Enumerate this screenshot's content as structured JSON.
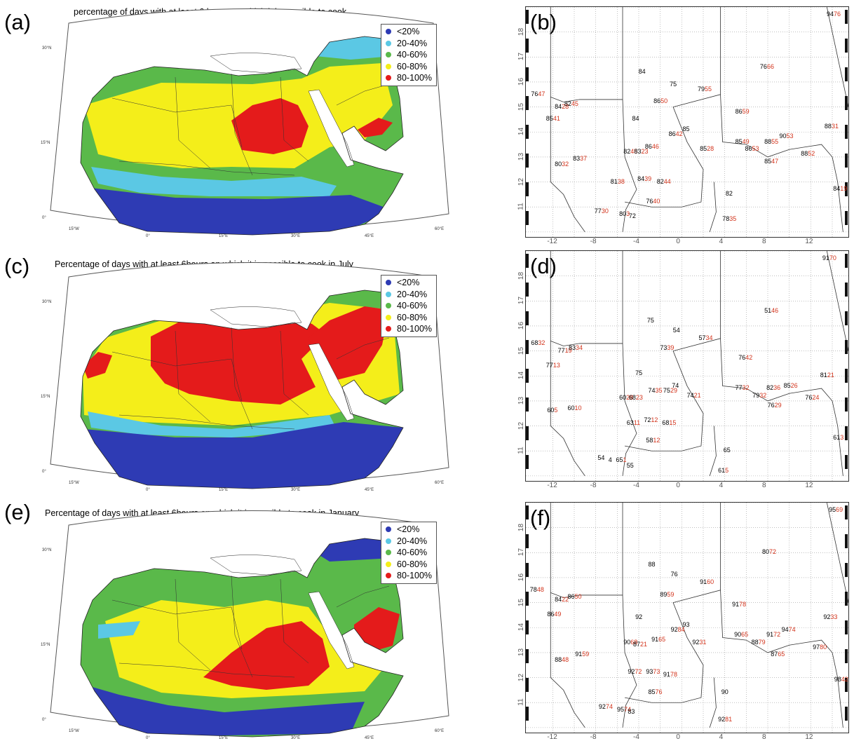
{
  "colors": {
    "blue": "#2e3bb4",
    "cyan": "#5bc8e4",
    "green": "#5ab94a",
    "yellow": "#f4ee1a",
    "red": "#e41b1b",
    "station_black": "#000000",
    "station_red": "#d2321a"
  },
  "legend": [
    "<20%",
    "20-40%",
    "40-60%",
    "60-80%",
    "80-100%"
  ],
  "map_axis": {
    "lon_labels": [
      "15°W",
      "0°",
      "15°E",
      "30°E",
      "45°E",
      "60°E"
    ],
    "lat_labels": [
      "30°N",
      "15°N",
      "0°"
    ]
  },
  "grid_axis": {
    "lon_ticks": [
      "-12",
      "-8",
      "-4",
      "0",
      "4",
      "8",
      "12"
    ],
    "lat_ticks": [
      "18",
      "17",
      "16",
      "15",
      "14",
      "13",
      "12",
      "11"
    ]
  },
  "panels": {
    "a": {
      "letter": "(a)",
      "title": "percentage of days with at least 6 hours on which it is possible to cook"
    },
    "c": {
      "letter": "(c)",
      "title": "Percentage of days with at least 6hours on which it is possible to cook in July"
    },
    "e": {
      "letter": "(e)",
      "title": "Percentage of days with at least 6hours on which it is possible to cook in January"
    },
    "b": {
      "letter": "(b)"
    },
    "d": {
      "letter": "(d)"
    },
    "f": {
      "letter": "(f)"
    }
  },
  "stations": {
    "b": [
      {
        "lon": 14.0,
        "lat": 18.7,
        "a": "94",
        "b": "76"
      },
      {
        "lon": 7.8,
        "lat": 16.6,
        "a": "76",
        "b": "66"
      },
      {
        "lon": -3.5,
        "lat": 16.4,
        "a": "84",
        "b": ""
      },
      {
        "lon": -0.6,
        "lat": 15.9,
        "a": "75",
        "b": ""
      },
      {
        "lon": 2.0,
        "lat": 15.7,
        "a": "79",
        "b": "55"
      },
      {
        "lon": -13.5,
        "lat": 15.5,
        "a": "76",
        "b": "47"
      },
      {
        "lon": -11.3,
        "lat": 15.0,
        "a": "84",
        "b": "28"
      },
      {
        "lon": -10.4,
        "lat": 15.1,
        "a": "82",
        "b": "45"
      },
      {
        "lon": -2.1,
        "lat": 15.2,
        "a": "86",
        "b": "50"
      },
      {
        "lon": 5.5,
        "lat": 14.8,
        "a": "86",
        "b": "59"
      },
      {
        "lon": -12.1,
        "lat": 14.5,
        "a": "85",
        "b": "41"
      },
      {
        "lon": -4.1,
        "lat": 14.5,
        "a": "84",
        "b": ""
      },
      {
        "lon": 13.8,
        "lat": 14.2,
        "a": "88",
        "b": "31"
      },
      {
        "lon": 0.6,
        "lat": 14.1,
        "a": "85",
        "b": ""
      },
      {
        "lon": -0.7,
        "lat": 13.9,
        "a": "86",
        "b": "42"
      },
      {
        "lon": 9.6,
        "lat": 13.8,
        "a": "90",
        "b": "53"
      },
      {
        "lon": 5.5,
        "lat": 13.6,
        "a": "85",
        "b": "49"
      },
      {
        "lon": 8.2,
        "lat": 13.6,
        "a": "88",
        "b": "55"
      },
      {
        "lon": -2.9,
        "lat": 13.4,
        "a": "86",
        "b": "46"
      },
      {
        "lon": -4.9,
        "lat": 13.2,
        "a": "82",
        "b": "45"
      },
      {
        "lon": -3.9,
        "lat": 13.2,
        "a": "83",
        "b": "23"
      },
      {
        "lon": 2.2,
        "lat": 13.3,
        "a": "85",
        "b": "28"
      },
      {
        "lon": 6.4,
        "lat": 13.3,
        "a": "86",
        "b": "53"
      },
      {
        "lon": 11.6,
        "lat": 13.1,
        "a": "88",
        "b": "52"
      },
      {
        "lon": -9.6,
        "lat": 12.9,
        "a": "83",
        "b": "37"
      },
      {
        "lon": -11.3,
        "lat": 12.7,
        "a": "80",
        "b": "32"
      },
      {
        "lon": 8.2,
        "lat": 12.8,
        "a": "85",
        "b": "47"
      },
      {
        "lon": -6.1,
        "lat": 12.0,
        "a": "81",
        "b": "38"
      },
      {
        "lon": -3.6,
        "lat": 12.1,
        "a": "84",
        "b": "39"
      },
      {
        "lon": -1.8,
        "lat": 12.0,
        "a": "82",
        "b": "44"
      },
      {
        "lon": 14.6,
        "lat": 11.7,
        "a": "84",
        "b": "19"
      },
      {
        "lon": 4.6,
        "lat": 11.5,
        "a": "82",
        "b": ""
      },
      {
        "lon": -2.8,
        "lat": 11.2,
        "a": "76",
        "b": "40"
      },
      {
        "lon": -7.6,
        "lat": 10.8,
        "a": "77",
        "b": "30"
      },
      {
        "lon": -5.3,
        "lat": 10.7,
        "a": "80",
        "b": "3"
      },
      {
        "lon": -4.4,
        "lat": 10.6,
        "a": "72",
        "b": ""
      },
      {
        "lon": 4.3,
        "lat": 10.5,
        "a": "78",
        "b": "35"
      }
    ],
    "d": [
      {
        "lon": 13.6,
        "lat": 18.7,
        "a": "91",
        "b": "70"
      },
      {
        "lon": 8.2,
        "lat": 16.6,
        "a": "51",
        "b": "46"
      },
      {
        "lon": -2.7,
        "lat": 16.2,
        "a": "75",
        "b": ""
      },
      {
        "lon": -0.3,
        "lat": 15.8,
        "a": "54",
        "b": ""
      },
      {
        "lon": 2.1,
        "lat": 15.5,
        "a": "57",
        "b": "34"
      },
      {
        "lon": -13.5,
        "lat": 15.3,
        "a": "68",
        "b": "32"
      },
      {
        "lon": -11.0,
        "lat": 15.0,
        "a": "77",
        "b": "19"
      },
      {
        "lon": -10.0,
        "lat": 15.1,
        "a": "83",
        "b": "34"
      },
      {
        "lon": -1.5,
        "lat": 15.1,
        "a": "73",
        "b": "39"
      },
      {
        "lon": 5.8,
        "lat": 14.7,
        "a": "76",
        "b": "42"
      },
      {
        "lon": -12.1,
        "lat": 14.4,
        "a": "77",
        "b": "13"
      },
      {
        "lon": -3.8,
        "lat": 14.1,
        "a": "75",
        "b": ""
      },
      {
        "lon": 13.4,
        "lat": 14.0,
        "a": "81",
        "b": "21"
      },
      {
        "lon": -0.4,
        "lat": 13.6,
        "a": "74",
        "b": ""
      },
      {
        "lon": -1.2,
        "lat": 13.4,
        "a": "75",
        "b": "29"
      },
      {
        "lon": 10.0,
        "lat": 13.6,
        "a": "85",
        "b": "26"
      },
      {
        "lon": 8.4,
        "lat": 13.5,
        "a": "82",
        "b": "36"
      },
      {
        "lon": 5.5,
        "lat": 13.5,
        "a": "77",
        "b": "32"
      },
      {
        "lon": -5.3,
        "lat": 13.1,
        "a": "60",
        "b": "28"
      },
      {
        "lon": -4.4,
        "lat": 13.1,
        "a": "68",
        "b": "23"
      },
      {
        "lon": -2.6,
        "lat": 13.4,
        "a": "74",
        "b": "35"
      },
      {
        "lon": 1.0,
        "lat": 13.2,
        "a": "74",
        "b": "21"
      },
      {
        "lon": 7.1,
        "lat": 13.2,
        "a": "79",
        "b": "32"
      },
      {
        "lon": 12.0,
        "lat": 13.1,
        "a": "76",
        "b": "24"
      },
      {
        "lon": -10.1,
        "lat": 12.7,
        "a": "60",
        "b": "10"
      },
      {
        "lon": -12.0,
        "lat": 12.6,
        "a": "60",
        "b": "5"
      },
      {
        "lon": 8.5,
        "lat": 12.8,
        "a": "76",
        "b": "29"
      },
      {
        "lon": -4.6,
        "lat": 12.1,
        "a": "63",
        "b": "11"
      },
      {
        "lon": -3.0,
        "lat": 12.2,
        "a": "72",
        "b": "12"
      },
      {
        "lon": -1.3,
        "lat": 12.1,
        "a": "68",
        "b": "15"
      },
      {
        "lon": 14.6,
        "lat": 11.5,
        "a": "61",
        "b": "3"
      },
      {
        "lon": -2.8,
        "lat": 11.4,
        "a": "58",
        "b": "12"
      },
      {
        "lon": 4.4,
        "lat": 11.0,
        "a": "65",
        "b": ""
      },
      {
        "lon": -7.3,
        "lat": 10.7,
        "a": "54",
        "b": ""
      },
      {
        "lon": -6.3,
        "lat": 10.6,
        "a": "4",
        "b": ""
      },
      {
        "lon": -5.6,
        "lat": 10.6,
        "a": "65",
        "b": "1"
      },
      {
        "lon": -4.6,
        "lat": 10.4,
        "a": "55",
        "b": ""
      },
      {
        "lon": 3.9,
        "lat": 10.2,
        "a": "61",
        "b": "5"
      }
    ],
    "f": [
      {
        "lon": 14.2,
        "lat": 18.7,
        "a": "95",
        "b": "69"
      },
      {
        "lon": 8.0,
        "lat": 17.0,
        "a": "80",
        "b": "72"
      },
      {
        "lon": -2.6,
        "lat": 16.5,
        "a": "88",
        "b": ""
      },
      {
        "lon": -0.5,
        "lat": 16.1,
        "a": "76",
        "b": ""
      },
      {
        "lon": 2.2,
        "lat": 15.8,
        "a": "91",
        "b": "60"
      },
      {
        "lon": -13.6,
        "lat": 15.5,
        "a": "78",
        "b": "48"
      },
      {
        "lon": -11.3,
        "lat": 15.1,
        "a": "84",
        "b": "22"
      },
      {
        "lon": -10.1,
        "lat": 15.2,
        "a": "86",
        "b": "50"
      },
      {
        "lon": -1.5,
        "lat": 15.3,
        "a": "89",
        "b": "59"
      },
      {
        "lon": 5.2,
        "lat": 14.9,
        "a": "91",
        "b": "78"
      },
      {
        "lon": -12.0,
        "lat": 14.5,
        "a": "86",
        "b": "49"
      },
      {
        "lon": -3.8,
        "lat": 14.4,
        "a": "92",
        "b": ""
      },
      {
        "lon": 13.7,
        "lat": 14.4,
        "a": "92",
        "b": "33"
      },
      {
        "lon": 0.6,
        "lat": 14.1,
        "a": "93",
        "b": ""
      },
      {
        "lon": -0.5,
        "lat": 13.9,
        "a": "92",
        "b": "84"
      },
      {
        "lon": 9.8,
        "lat": 13.9,
        "a": "94",
        "b": "74"
      },
      {
        "lon": 5.4,
        "lat": 13.7,
        "a": "90",
        "b": "65"
      },
      {
        "lon": 8.4,
        "lat": 13.7,
        "a": "91",
        "b": "72"
      },
      {
        "lon": -4.9,
        "lat": 13.4,
        "a": "90",
        "b": "68"
      },
      {
        "lon": -4.0,
        "lat": 13.3,
        "a": "87",
        "b": "21"
      },
      {
        "lon": -2.3,
        "lat": 13.5,
        "a": "91",
        "b": "65"
      },
      {
        "lon": 1.5,
        "lat": 13.4,
        "a": "92",
        "b": "31"
      },
      {
        "lon": 7.0,
        "lat": 13.4,
        "a": "88",
        "b": "79"
      },
      {
        "lon": 12.7,
        "lat": 13.2,
        "a": "97",
        "b": "80"
      },
      {
        "lon": -9.4,
        "lat": 12.9,
        "a": "91",
        "b": "59"
      },
      {
        "lon": -11.3,
        "lat": 12.7,
        "a": "88",
        "b": "48"
      },
      {
        "lon": 8.8,
        "lat": 12.9,
        "a": "87",
        "b": "65"
      },
      {
        "lon": -4.5,
        "lat": 12.2,
        "a": "92",
        "b": "72"
      },
      {
        "lon": -2.8,
        "lat": 12.2,
        "a": "93",
        "b": "73"
      },
      {
        "lon": -1.2,
        "lat": 12.1,
        "a": "91",
        "b": "78"
      },
      {
        "lon": 14.7,
        "lat": 11.9,
        "a": "98",
        "b": "42"
      },
      {
        "lon": 4.2,
        "lat": 11.4,
        "a": "90",
        "b": ""
      },
      {
        "lon": -2.6,
        "lat": 11.4,
        "a": "85",
        "b": "76"
      },
      {
        "lon": -7.2,
        "lat": 10.8,
        "a": "92",
        "b": "74"
      },
      {
        "lon": -5.5,
        "lat": 10.7,
        "a": "95",
        "b": "74"
      },
      {
        "lon": -4.5,
        "lat": 10.6,
        "a": "83",
        "b": ""
      },
      {
        "lon": 3.9,
        "lat": 10.3,
        "a": "92",
        "b": "81"
      }
    ]
  }
}
